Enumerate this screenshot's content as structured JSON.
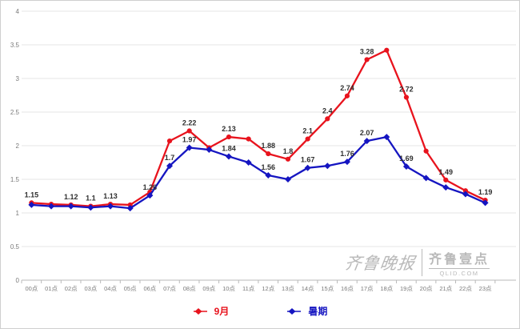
{
  "chart_data": {
    "type": "line",
    "title": "",
    "xlabel": "",
    "ylabel": "",
    "categories": [
      "00点",
      "01点",
      "02点",
      "03点",
      "04点",
      "05点",
      "06点",
      "07点",
      "08点",
      "09点",
      "10点",
      "11点",
      "12点",
      "13点",
      "14点",
      "15点",
      "16点",
      "17点",
      "18点",
      "19点",
      "20点",
      "21点",
      "22点",
      "23点"
    ],
    "ylim": [
      0,
      4
    ],
    "ytick_step": 0.5,
    "ytick_labels": [
      "0",
      "0.5",
      "1",
      "1.5",
      "2",
      "2.5",
      "3",
      "3.5",
      "4"
    ],
    "grid": "horizontal",
    "legend_position": "bottom-center",
    "series": [
      {
        "name": "9月",
        "color": "#e8131d",
        "marker": "circle",
        "values": [
          1.15,
          1.13,
          1.12,
          1.1,
          1.13,
          1.12,
          1.31,
          2.07,
          2.22,
          1.97,
          2.13,
          2.1,
          1.88,
          1.8,
          2.1,
          2.4,
          2.74,
          3.28,
          3.42,
          2.72,
          1.92,
          1.49,
          1.33,
          1.19
        ],
        "shown_labels": {
          "0": "1.15",
          "2": "1.12",
          "3": "1.1",
          "4": "1.13",
          "8": "2.22",
          "10": "2.13",
          "12": "1.88",
          "13": "1.8",
          "14": "2.1",
          "15": "2.4",
          "16": "2.74",
          "17": "3.28",
          "19": "2.72",
          "21": "1.49",
          "23": "1.19"
        }
      },
      {
        "name": "暑期",
        "color": "#1515c1",
        "marker": "diamond",
        "values": [
          1.12,
          1.1,
          1.1,
          1.08,
          1.1,
          1.07,
          1.26,
          1.7,
          1.97,
          1.94,
          1.84,
          1.75,
          1.56,
          1.5,
          1.67,
          1.7,
          1.76,
          2.07,
          2.13,
          1.69,
          1.52,
          1.38,
          1.28,
          1.15
        ],
        "shown_labels": {
          "6": "1.26",
          "7": "1.7",
          "8": "1.97",
          "10": "1.84",
          "12": "1.56",
          "14": "1.67",
          "16": "1.76",
          "17": "2.07",
          "19": "1.69"
        }
      }
    ]
  },
  "watermark": {
    "left_text": "齐鲁晚报",
    "right_text": "齐鲁壹点",
    "right_subtext": "QLID.COM"
  }
}
